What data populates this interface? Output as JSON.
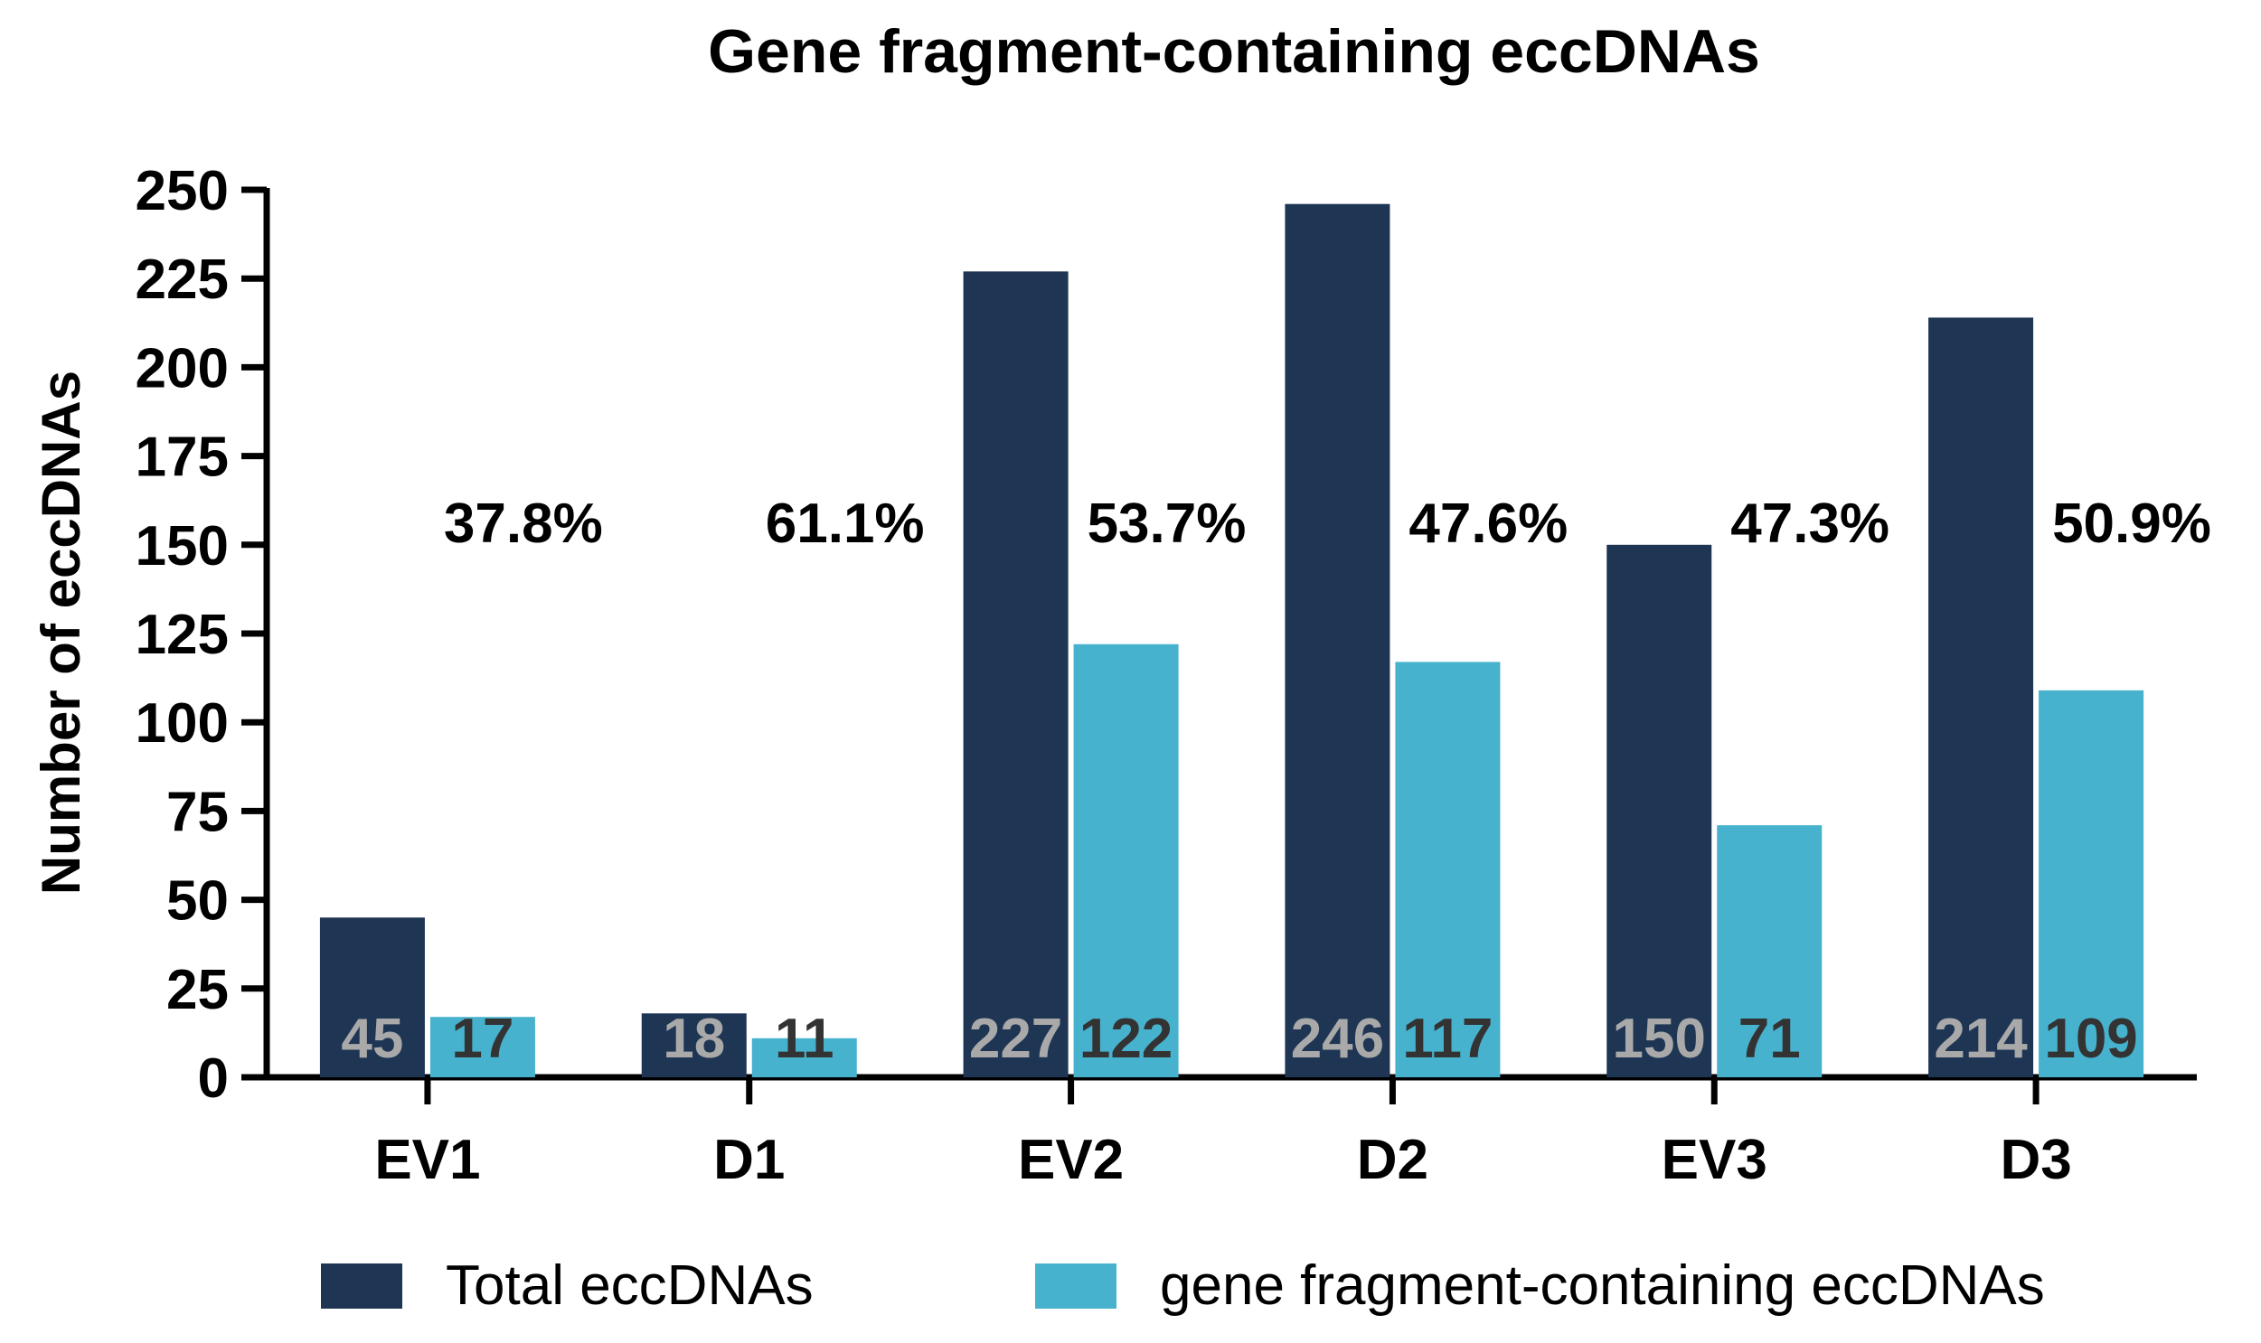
{
  "chart_data": {
    "type": "bar",
    "title": "Gene fragment-containing eccDNAs",
    "xlabel": "",
    "ylabel": "Number of eccDNAs",
    "ylim": [
      0,
      250
    ],
    "yticks": [
      0,
      25,
      50,
      75,
      100,
      125,
      150,
      175,
      200,
      225,
      250
    ],
    "grid": false,
    "legend_position": "bottom",
    "categories": [
      "EV1",
      "D1",
      "EV2",
      "D2",
      "EV3",
      "D3"
    ],
    "series": [
      {
        "name": "Total eccDNAs",
        "color": "#1e3554",
        "label_color": "#a9a9a9",
        "values": [
          45,
          18,
          227,
          246,
          150,
          214
        ]
      },
      {
        "name": "gene fragment-containing eccDNAs",
        "color": "#47b2cd",
        "label_color": "#333333",
        "values": [
          17,
          11,
          122,
          117,
          71,
          109
        ]
      }
    ],
    "annotations": [
      "37.8%",
      "61.1%",
      "53.7%",
      "47.6%",
      "47.3%",
      "50.9%"
    ]
  }
}
